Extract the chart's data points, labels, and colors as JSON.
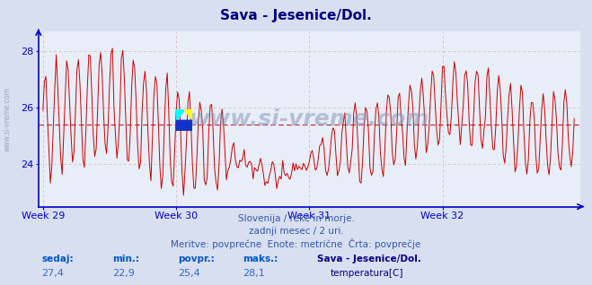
{
  "title": "Sava - Jesenice/Dol.",
  "title_color": "#000080",
  "title_fontsize": 11,
  "bg_color": "#d8dff0",
  "plot_bg_color": "#e8eef8",
  "line_color": "#cc0000",
  "avg_line_color": "#cc0000",
  "avg_line_value": 25.4,
  "ylabel_color": "#000080",
  "xlabel_color": "#4466aa",
  "axis_color": "#0000cc",
  "grid_color": "#cc9999",
  "ymin": 22.5,
  "ymax": 28.7,
  "yticks": [
    24,
    26,
    28
  ],
  "xtick_labels": [
    "Week 29",
    "Week 30",
    "Week 31",
    "Week 32"
  ],
  "watermark": "www.si-vreme.com",
  "subtitle1": "Slovenija / reke in morje.",
  "subtitle2": "zadnji mesec / 2 uri.",
  "subtitle3": "Meritve: povprečne  Enote: metrične  Črta: povprečje",
  "footer_labels": [
    "sedaj:",
    "min.:",
    "povpr.:",
    "maks.:"
  ],
  "footer_values": [
    "27,4",
    "22,9",
    "25,4",
    "28,1"
  ],
  "legend_title": "Sava - Jesenice/Dol.",
  "legend_item": "temperatura[C]",
  "legend_color": "#cc0000",
  "sidebar_text": "www.si-vreme.com",
  "n_points": 360
}
